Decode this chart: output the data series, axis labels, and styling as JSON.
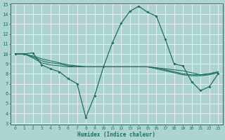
{
  "xlabel": "Humidex (Indice chaleur)",
  "xlim": [
    -0.5,
    23.5
  ],
  "ylim": [
    3,
    15
  ],
  "yticks": [
    3,
    4,
    5,
    6,
    7,
    8,
    9,
    10,
    11,
    12,
    13,
    14,
    15
  ],
  "xticks": [
    0,
    1,
    2,
    3,
    4,
    5,
    6,
    7,
    8,
    9,
    10,
    11,
    12,
    13,
    14,
    15,
    16,
    17,
    18,
    19,
    20,
    21,
    22,
    23
  ],
  "bg_color": "#aed4d2",
  "line_color": "#1e6e5e",
  "grid_color": "#ffffff",
  "main_series": [
    10.0,
    10.0,
    10.1,
    8.9,
    8.5,
    8.2,
    7.5,
    7.0,
    3.6,
    5.8,
    8.7,
    11.1,
    13.1,
    14.3,
    14.8,
    14.2,
    13.8,
    11.5,
    9.0,
    8.8,
    7.2,
    6.3,
    6.7,
    8.0
  ],
  "flat_series": [
    [
      10.0,
      10.0,
      9.8,
      9.5,
      9.3,
      9.1,
      8.9,
      8.8,
      8.7,
      8.7,
      8.7,
      8.7,
      8.7,
      8.7,
      8.7,
      8.7,
      8.6,
      8.5,
      8.4,
      8.3,
      8.1,
      7.9,
      8.0,
      8.2
    ],
    [
      10.0,
      10.0,
      9.6,
      9.1,
      8.9,
      8.8,
      8.7,
      8.7,
      8.7,
      8.7,
      8.7,
      8.7,
      8.7,
      8.7,
      8.7,
      8.7,
      8.5,
      8.3,
      8.1,
      7.9,
      7.8,
      7.8,
      7.9,
      8.1
    ],
    [
      10.0,
      10.0,
      9.7,
      9.3,
      9.1,
      9.0,
      8.8,
      8.7,
      8.7,
      8.7,
      8.7,
      8.7,
      8.7,
      8.7,
      8.7,
      8.7,
      8.6,
      8.4,
      8.2,
      8.0,
      7.9,
      7.9,
      8.0,
      8.2
    ]
  ]
}
